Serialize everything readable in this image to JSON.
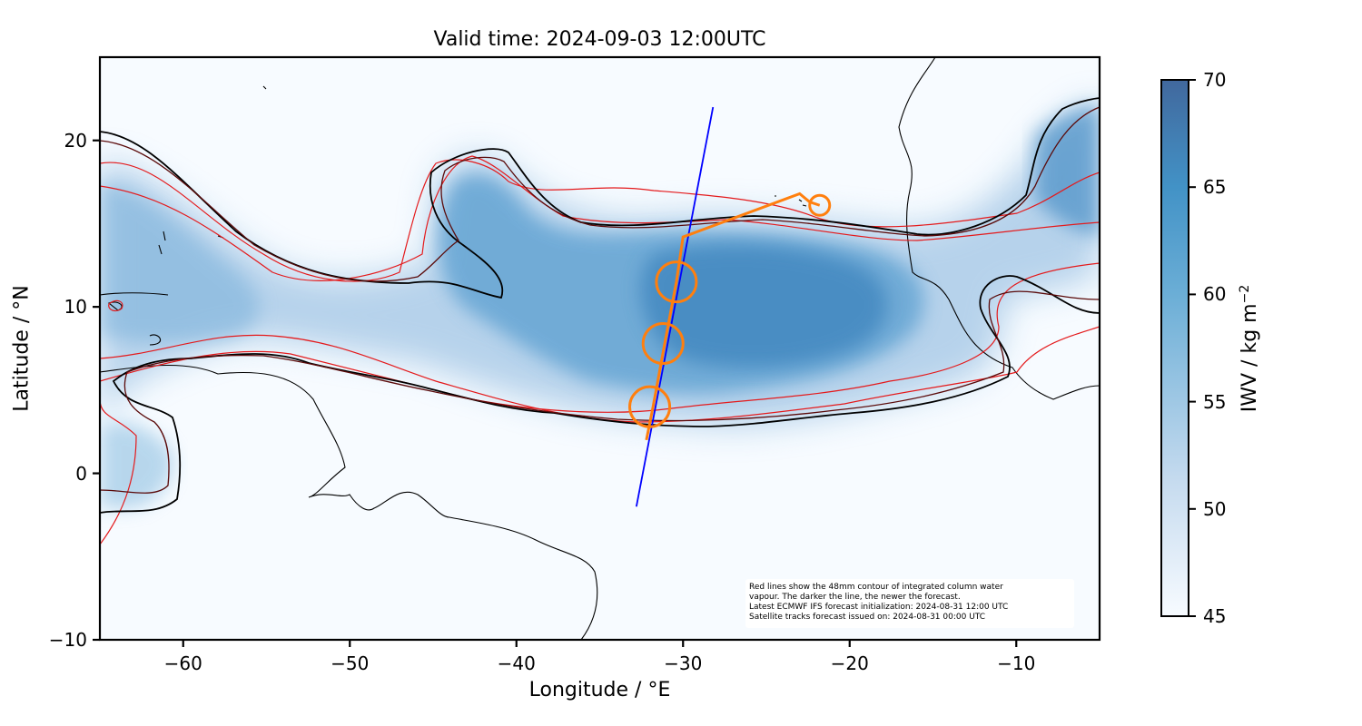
{
  "title": "Valid time: 2024-09-03 12:00UTC",
  "x_axis": {
    "label": "Longitude / °E",
    "ticks": [
      {
        "value": -60,
        "label": "−60"
      },
      {
        "value": -50,
        "label": "−50"
      },
      {
        "value": -40,
        "label": "−40"
      },
      {
        "value": -30,
        "label": "−30"
      },
      {
        "value": -20,
        "label": "−20"
      },
      {
        "value": -10,
        "label": "−10"
      }
    ],
    "range": [
      -65,
      -5
    ]
  },
  "y_axis": {
    "label": "Latitude / °N",
    "ticks": [
      {
        "value": 20,
        "label": "20"
      },
      {
        "value": 10,
        "label": "10"
      },
      {
        "value": 0,
        "label": "0"
      },
      {
        "value": -10,
        "label": "−10"
      }
    ],
    "range": [
      -10,
      25
    ]
  },
  "colorbar": {
    "label": "IWV / kg m",
    "label_exponent": "−2",
    "ticks": [
      {
        "value": 70,
        "label": "70"
      },
      {
        "value": 65,
        "label": "65"
      },
      {
        "value": 60,
        "label": "60"
      },
      {
        "value": 55,
        "label": "55"
      },
      {
        "value": 50,
        "label": "50"
      },
      {
        "value": 45,
        "label": "45"
      }
    ],
    "range": [
      45,
      70
    ],
    "colors": [
      "#f7fbff",
      "#c6dbef",
      "#6baed6",
      "#4292c6",
      "#41689d"
    ]
  },
  "annotation": {
    "lines": [
      "Red lines show the 48mm contour of integrated column water",
      "vapour. The darker the line, the newer the forecast.",
      "Latest ECMWF IFS forecast initialization: 2024-08-31 12:00 UTC",
      "Satellite tracks forecast issued on: 2024-08-31 00:00 UTC"
    ]
  },
  "colors": {
    "satellite_track": "#0000ff",
    "flight_track": "#ff7f0e",
    "contour_newest": "#000000",
    "contour_older": "#e41a1c",
    "coastline": "#000000"
  },
  "satellite_track": [
    {
      "lon": -32.8,
      "lat": -2.0
    },
    {
      "lon": -28.2,
      "lat": 22.0
    }
  ],
  "flight_track": [
    {
      "lon": -32.2,
      "lat": 2.0
    },
    {
      "lon": -31.8,
      "lat": 4.0
    },
    {
      "lon": -31.1,
      "lat": 7.8
    },
    {
      "lon": -30.4,
      "lat": 11.5
    },
    {
      "lon": -30.0,
      "lat": 14.2
    },
    {
      "lon": -23.0,
      "lat": 16.8
    },
    {
      "lon": -22.4,
      "lat": 16.3
    },
    {
      "lon": -21.8,
      "lat": 16.1
    }
  ],
  "circles": [
    {
      "lon": -32.0,
      "lat": 4.0,
      "radius_deg": 1.2
    },
    {
      "lon": -31.2,
      "lat": 7.8,
      "radius_deg": 1.2
    },
    {
      "lon": -30.4,
      "lat": 11.5,
      "radius_deg": 1.2
    },
    {
      "lon": -21.8,
      "lat": 16.1,
      "radius_deg": 0.6
    }
  ]
}
